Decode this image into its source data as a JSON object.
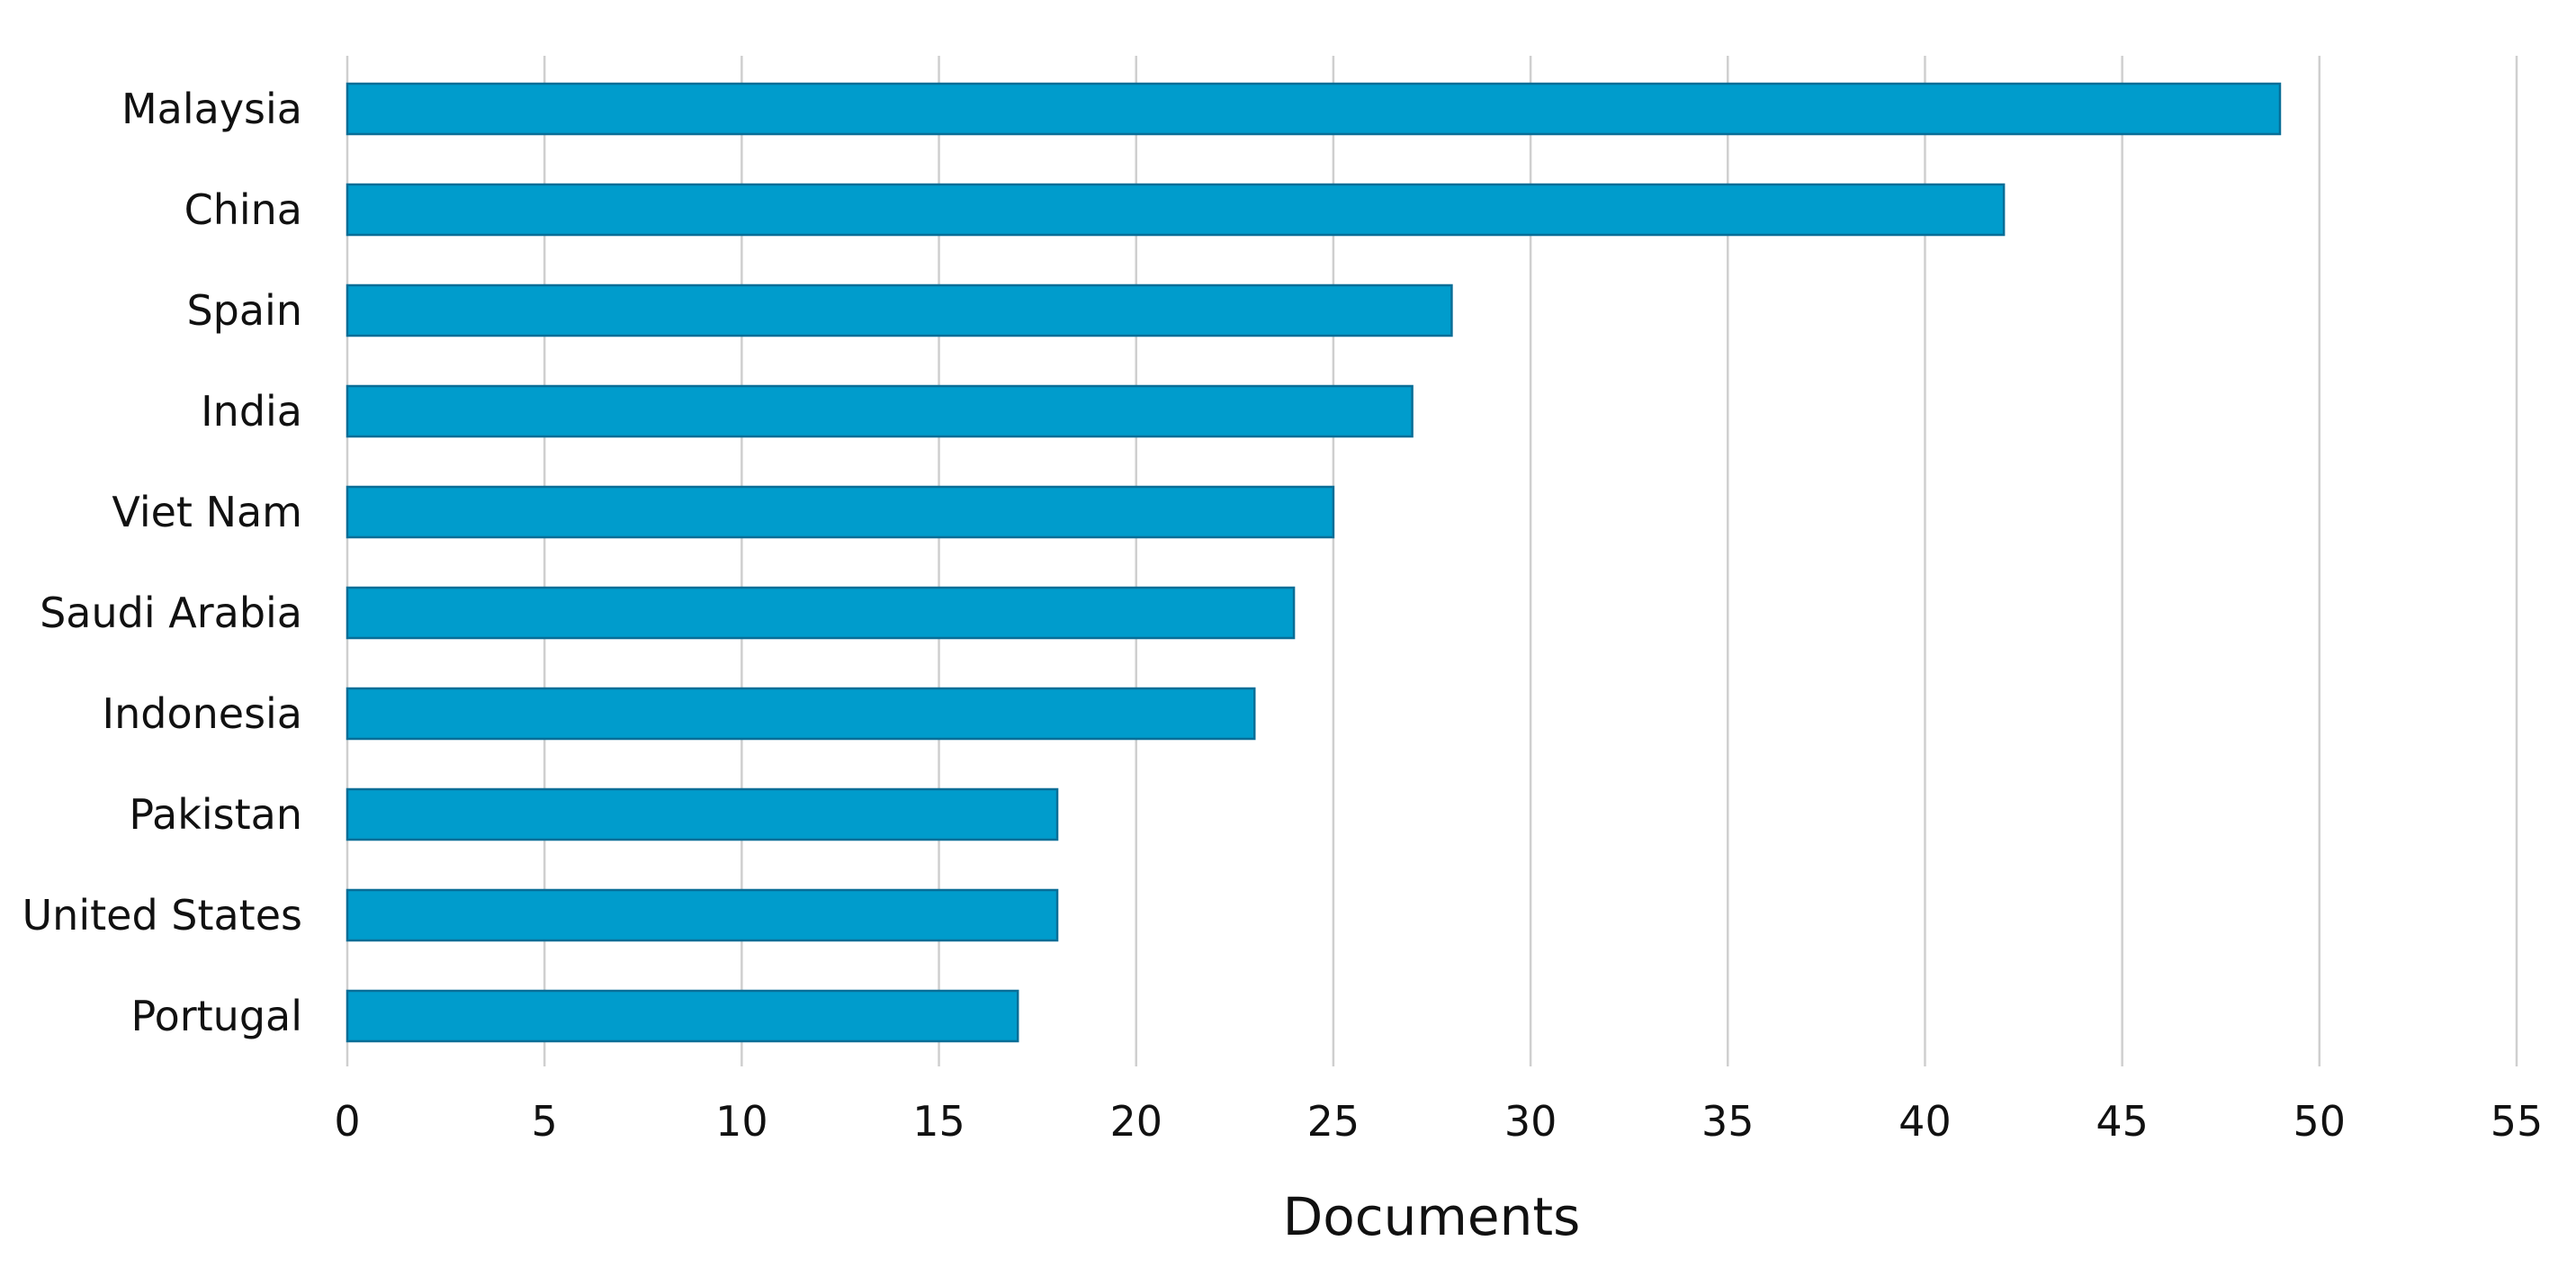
{
  "chart_data": {
    "type": "bar",
    "orientation": "horizontal",
    "categories": [
      "Malaysia",
      "China",
      "Spain",
      "India",
      "Viet Nam",
      "Saudi Arabia",
      "Indonesia",
      "Pakistan",
      "United States",
      "Portugal"
    ],
    "values": [
      49,
      42,
      28,
      27,
      25,
      24,
      23,
      18,
      18,
      17
    ],
    "xlabel": "Documents",
    "ylabel": "",
    "title": "",
    "xlim": [
      0,
      55
    ],
    "xticks": [
      "0",
      "5",
      "10",
      "15",
      "20",
      "25",
      "30",
      "35",
      "40",
      "45",
      "50",
      "55"
    ],
    "grid": "vertical",
    "legend": "none",
    "bar_color": "#009ccc"
  }
}
